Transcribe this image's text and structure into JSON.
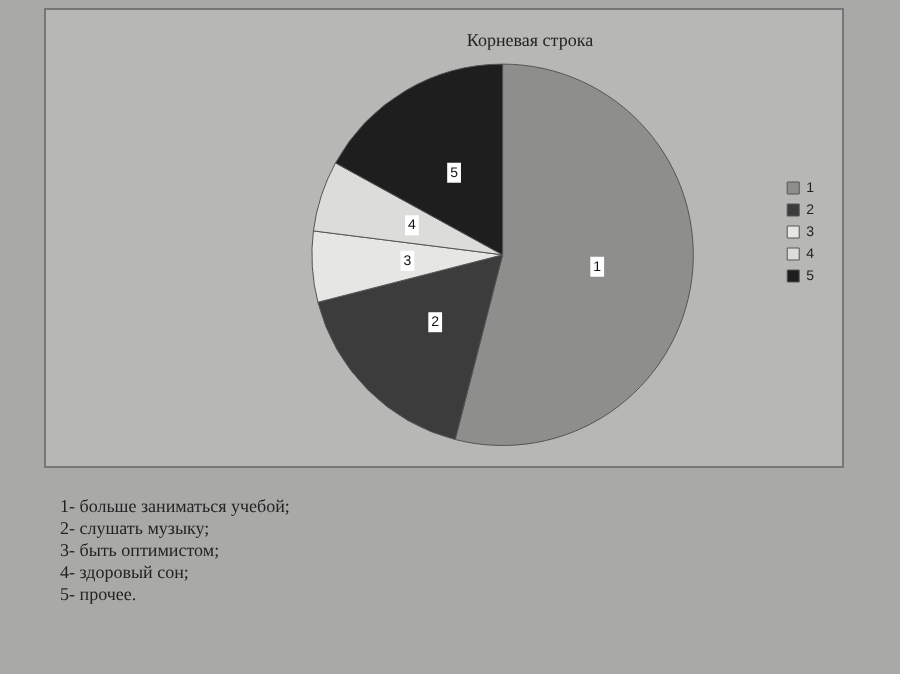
{
  "chart_data": {
    "type": "pie",
    "title": "Корневая строка",
    "categories": [
      "1",
      "2",
      "3",
      "4",
      "5"
    ],
    "values": [
      54,
      17,
      6,
      6,
      17
    ],
    "colors": [
      "#8e8e8c",
      "#3c3c3c",
      "#e6e6e4",
      "#dcdcda",
      "#1e1e1e"
    ],
    "legend": "right",
    "annotations": [
      "1- больше заниматься учебой;",
      "2- слушать музыку;",
      "3- быть оптимистом;",
      "4- здоровый сон;",
      "5- прочее."
    ]
  }
}
